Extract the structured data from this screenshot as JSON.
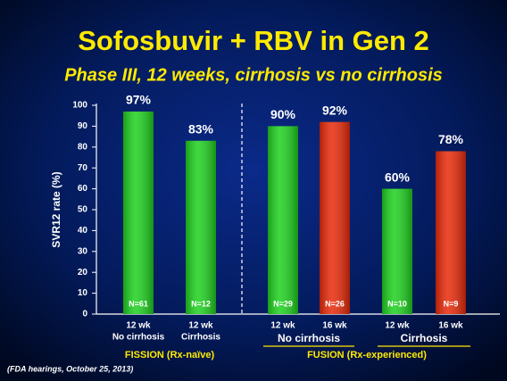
{
  "chart_data": {
    "type": "bar",
    "title": "Sofosbuvir + RBV in Gen 2",
    "subtitle": "Phase III, 12 weeks, cirrhosis vs no cirrhosis",
    "y_label": "SVR12 rate (%)",
    "categories": [
      "12 wk",
      "12 wk",
      "12 wk",
      "16 wk",
      "12 wk",
      "16 wk"
    ],
    "sublabels": [
      "No cirrhosis",
      "Cirrhosis",
      null,
      null,
      null,
      null
    ],
    "values": [
      97,
      83,
      90,
      92,
      60,
      78
    ],
    "value_labels": [
      "97%",
      "83%",
      "90%",
      "92%",
      "60%",
      "78%"
    ],
    "n_labels": [
      "N=61",
      "N=12",
      "N=29",
      "N=26",
      "N=10",
      "N=9"
    ],
    "colors": [
      "#1fd11f",
      "#1fd11f",
      "#1fd11f",
      "#e82a0a",
      "#1fd11f",
      "#e82a0a"
    ],
    "subgroup_labels": [
      "No cirrhosis",
      "Cirrhosis"
    ],
    "group_labels": [
      "FISSION (Rx-naïve)",
      "FUSION (Rx-experienced)"
    ],
    "ylim": [
      0,
      100
    ],
    "yticks": [
      0,
      10,
      20,
      30,
      40,
      50,
      60,
      70,
      80,
      90,
      100
    ],
    "footnote": "(FDA hearings, October 25, 2013)"
  }
}
